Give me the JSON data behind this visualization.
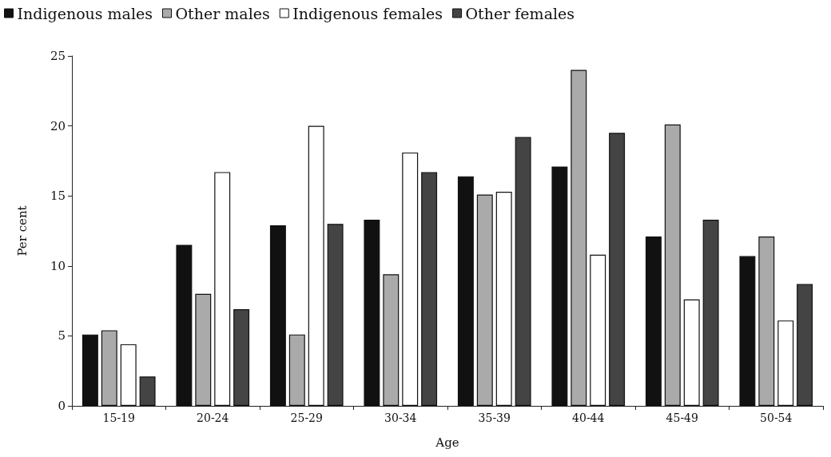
{
  "chart_data": {
    "type": "bar",
    "xlabel": "Age",
    "ylabel": "Per cent",
    "categories": [
      "15-19",
      "20-24",
      "25-29",
      "30-34",
      "35-39",
      "40-44",
      "45-49",
      "50-54"
    ],
    "series": [
      {
        "name": "Indigenous males",
        "color": "#111111",
        "values": [
          5.1,
          11.5,
          12.9,
          13.3,
          16.4,
          17.1,
          12.1,
          10.7
        ]
      },
      {
        "name": "Other males",
        "color": "#aaaaaa",
        "values": [
          5.4,
          8.0,
          5.1,
          9.4,
          15.1,
          24.0,
          20.1,
          12.1
        ]
      },
      {
        "name": "Indigenous females",
        "color": "#ffffff",
        "values": [
          4.4,
          16.7,
          20.0,
          18.1,
          15.3,
          10.8,
          7.6,
          6.1
        ]
      },
      {
        "name": "Other females",
        "color": "#444444",
        "values": [
          2.1,
          6.9,
          13.0,
          16.7,
          19.2,
          19.5,
          13.3,
          8.7
        ]
      }
    ],
    "ylim": [
      0,
      25
    ],
    "yticks": [
      0,
      5,
      10,
      15,
      20,
      25
    ],
    "grid": false,
    "legend": "top left"
  }
}
